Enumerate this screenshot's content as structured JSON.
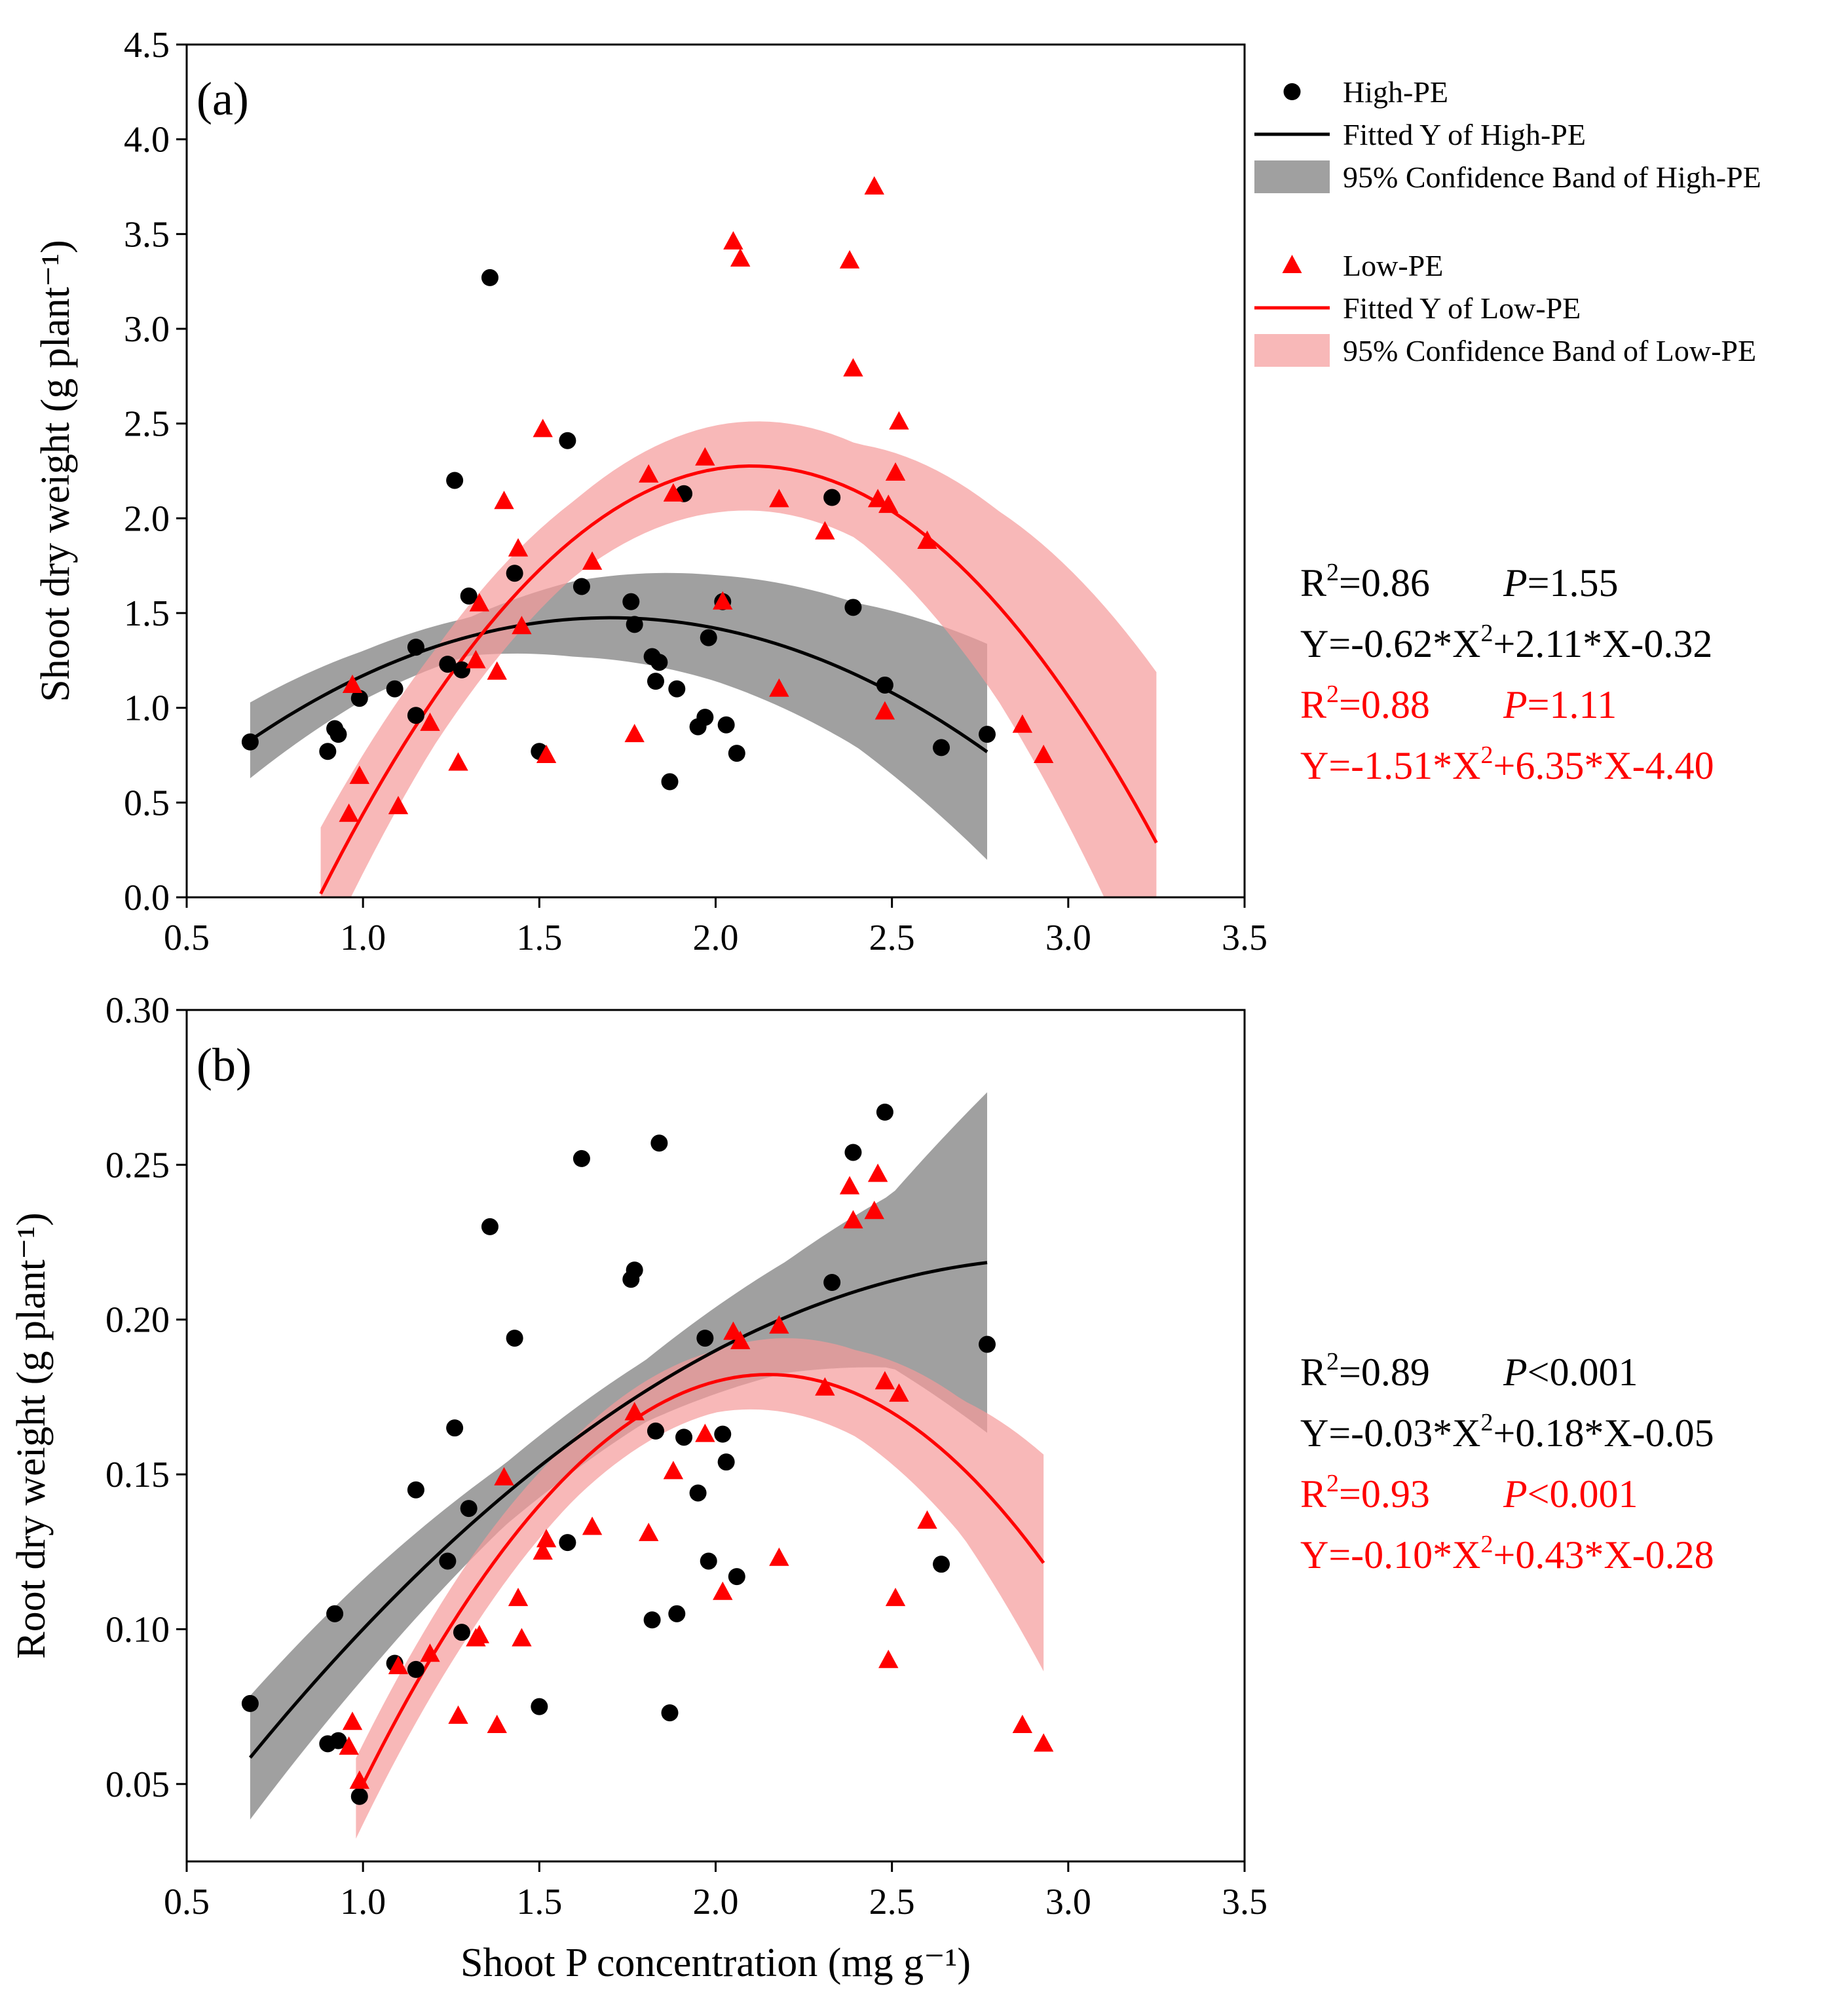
{
  "chart_data": [
    {
      "type": "scatter",
      "panel_label": "(a)",
      "xlabel": "Shoot P concentration (mg g⁻¹)",
      "ylabel": "Shoot dry weight (g plant⁻¹)",
      "xlim": [
        0.5,
        3.5
      ],
      "ylim": [
        0.0,
        4.5
      ],
      "xticks": [
        0.5,
        1.0,
        1.5,
        2.0,
        2.5,
        3.0,
        3.5
      ],
      "yticks": [
        0.0,
        0.5,
        1.0,
        1.5,
        2.0,
        2.5,
        3.0,
        3.5,
        4.0,
        4.5
      ],
      "series": [
        {
          "name": "High-PE",
          "color": "#000000",
          "marker": "circle",
          "points": [
            [
              0.68,
              0.82
            ],
            [
              0.9,
              0.77
            ],
            [
              0.92,
              0.89
            ],
            [
              0.93,
              0.86
            ],
            [
              0.99,
              1.05
            ],
            [
              1.09,
              1.1
            ],
            [
              1.15,
              1.32
            ],
            [
              1.15,
              0.96
            ],
            [
              1.24,
              1.23
            ],
            [
              1.26,
              2.2
            ],
            [
              1.28,
              1.2
            ],
            [
              1.3,
              1.59
            ],
            [
              1.36,
              3.27
            ],
            [
              1.43,
              1.71
            ],
            [
              1.5,
              0.77
            ],
            [
              1.58,
              2.41
            ],
            [
              1.62,
              1.64
            ],
            [
              1.76,
              1.56
            ],
            [
              1.77,
              1.44
            ],
            [
              1.82,
              1.27
            ],
            [
              1.83,
              1.14
            ],
            [
              1.84,
              1.24
            ],
            [
              1.87,
              0.61
            ],
            [
              1.89,
              1.1
            ],
            [
              1.91,
              2.13
            ],
            [
              1.95,
              0.9
            ],
            [
              1.97,
              0.95
            ],
            [
              1.98,
              1.37
            ],
            [
              2.02,
              1.56
            ],
            [
              2.03,
              0.91
            ],
            [
              2.06,
              0.76
            ],
            [
              2.33,
              2.11
            ],
            [
              2.39,
              1.53
            ],
            [
              2.48,
              1.12
            ],
            [
              2.64,
              0.79
            ],
            [
              2.77,
              0.86
            ]
          ],
          "fit": {
            "a": -0.62,
            "b": 2.11,
            "c": -0.32,
            "x_range": [
              0.68,
              2.77
            ]
          },
          "band_halfwidth": [
            [
              0.68,
              0.2
            ],
            [
              1.0,
              0.13
            ],
            [
              1.3,
              0.1
            ],
            [
              1.6,
              0.2
            ],
            [
              2.0,
              0.28
            ],
            [
              2.4,
              0.38
            ],
            [
              2.77,
              0.57
            ]
          ]
        },
        {
          "name": "Low-PE",
          "color": "#ff0000",
          "marker": "triangle",
          "points": [
            [
              0.96,
              0.44
            ],
            [
              0.97,
              1.12
            ],
            [
              0.99,
              0.64
            ],
            [
              1.1,
              0.48
            ],
            [
              1.19,
              0.92
            ],
            [
              1.27,
              0.71
            ],
            [
              1.32,
              1.25
            ],
            [
              1.33,
              1.55
            ],
            [
              1.38,
              1.19
            ],
            [
              1.4,
              2.09
            ],
            [
              1.44,
              1.84
            ],
            [
              1.45,
              1.43
            ],
            [
              1.51,
              2.47
            ],
            [
              1.52,
              0.75
            ],
            [
              1.65,
              1.77
            ],
            [
              1.77,
              0.86
            ],
            [
              1.81,
              2.23
            ],
            [
              1.88,
              2.13
            ],
            [
              1.97,
              2.32
            ],
            [
              2.02,
              1.56
            ],
            [
              2.05,
              3.46
            ],
            [
              2.07,
              3.37
            ],
            [
              2.18,
              1.1
            ],
            [
              2.18,
              2.1
            ],
            [
              2.31,
              1.93
            ],
            [
              2.38,
              3.36
            ],
            [
              2.39,
              2.79
            ],
            [
              2.45,
              3.75
            ],
            [
              2.46,
              2.1
            ],
            [
              2.48,
              0.98
            ],
            [
              2.49,
              2.07
            ],
            [
              2.51,
              2.24
            ],
            [
              2.52,
              2.51
            ],
            [
              2.6,
              1.88
            ],
            [
              2.87,
              0.91
            ],
            [
              2.93,
              0.75
            ]
          ],
          "fit": {
            "a": -1.51,
            "b": 6.35,
            "c": -4.4,
            "x_range": [
              0.88,
              3.25
            ]
          },
          "band_halfwidth": [
            [
              0.88,
              0.35
            ],
            [
              1.2,
              0.25
            ],
            [
              1.6,
              0.2
            ],
            [
              2.0,
              0.23
            ],
            [
              2.4,
              0.25
            ],
            [
              2.8,
              0.5
            ],
            [
              3.25,
              0.9
            ]
          ]
        }
      ],
      "stats": [
        {
          "r2": "0.86",
          "p": "1.55",
          "equation": {
            "pre": "Y=-0.62*X",
            "post": "+2.11*X-0.32"
          },
          "color": "#000000"
        },
        {
          "r2": "0.88",
          "p": "1.11",
          "equation": {
            "pre": "Y=-1.51*X",
            "post": "+6.35*X-4.40"
          },
          "color": "#ff0000"
        }
      ]
    },
    {
      "type": "scatter",
      "panel_label": "(b)",
      "xlabel": "Shoot P concentration (mg g⁻¹)",
      "ylabel": "Root dry weight (g plant⁻¹)",
      "xlim": [
        0.5,
        3.5
      ],
      "ylim": [
        0.025,
        0.3
      ],
      "xticks": [
        0.5,
        1.0,
        1.5,
        2.0,
        2.5,
        3.0,
        3.5
      ],
      "yticks": [
        0.05,
        0.1,
        0.15,
        0.2,
        0.25,
        0.3
      ],
      "series": [
        {
          "name": "High-PE",
          "color": "#000000",
          "marker": "circle",
          "points": [
            [
              0.68,
              0.076
            ],
            [
              0.9,
              0.063
            ],
            [
              0.92,
              0.105
            ],
            [
              0.93,
              0.064
            ],
            [
              0.99,
              0.046
            ],
            [
              1.09,
              0.089
            ],
            [
              1.15,
              0.087
            ],
            [
              1.15,
              0.145
            ],
            [
              1.24,
              0.122
            ],
            [
              1.26,
              0.165
            ],
            [
              1.28,
              0.099
            ],
            [
              1.3,
              0.139
            ],
            [
              1.36,
              0.23
            ],
            [
              1.43,
              0.194
            ],
            [
              1.5,
              0.075
            ],
            [
              1.58,
              0.128
            ],
            [
              1.62,
              0.252
            ],
            [
              1.76,
              0.213
            ],
            [
              1.77,
              0.216
            ],
            [
              1.82,
              0.103
            ],
            [
              1.83,
              0.164
            ],
            [
              1.84,
              0.257
            ],
            [
              1.87,
              0.073
            ],
            [
              1.89,
              0.105
            ],
            [
              1.91,
              0.162
            ],
            [
              1.95,
              0.144
            ],
            [
              1.97,
              0.194
            ],
            [
              1.98,
              0.122
            ],
            [
              2.02,
              0.163
            ],
            [
              2.03,
              0.154
            ],
            [
              2.06,
              0.117
            ],
            [
              2.33,
              0.212
            ],
            [
              2.39,
              0.254
            ],
            [
              2.48,
              0.267
            ],
            [
              2.64,
              0.121
            ],
            [
              2.77,
              0.192
            ]
          ],
          "fit": {
            "a": -0.03,
            "b": 0.18,
            "c": -0.05,
            "x_range": [
              0.68,
              2.77
            ]
          },
          "band_halfwidth": [
            [
              0.68,
              0.02
            ],
            [
              1.0,
              0.016
            ],
            [
              1.4,
              0.01
            ],
            [
              1.8,
              0.01
            ],
            [
              2.2,
              0.018
            ],
            [
              2.5,
              0.028
            ],
            [
              2.77,
              0.055
            ]
          ]
        },
        {
          "name": "Low-PE",
          "color": "#ff0000",
          "marker": "triangle",
          "points": [
            [
              0.96,
              0.062
            ],
            [
              0.97,
              0.07
            ],
            [
              0.99,
              0.051
            ],
            [
              1.1,
              0.088
            ],
            [
              1.19,
              0.092
            ],
            [
              1.27,
              0.072
            ],
            [
              1.32,
              0.097
            ],
            [
              1.33,
              0.098
            ],
            [
              1.38,
              0.069
            ],
            [
              1.4,
              0.149
            ],
            [
              1.44,
              0.11
            ],
            [
              1.45,
              0.097
            ],
            [
              1.51,
              0.125
            ],
            [
              1.52,
              0.129
            ],
            [
              1.65,
              0.133
            ],
            [
              1.77,
              0.17
            ],
            [
              1.81,
              0.131
            ],
            [
              1.88,
              0.151
            ],
            [
              1.97,
              0.163
            ],
            [
              2.02,
              0.112
            ],
            [
              2.05,
              0.196
            ],
            [
              2.07,
              0.193
            ],
            [
              2.18,
              0.198
            ],
            [
              2.18,
              0.123
            ],
            [
              2.31,
              0.178
            ],
            [
              2.38,
              0.243
            ],
            [
              2.39,
              0.232
            ],
            [
              2.45,
              0.235
            ],
            [
              2.46,
              0.247
            ],
            [
              2.48,
              0.18
            ],
            [
              2.49,
              0.09
            ],
            [
              2.51,
              0.11
            ],
            [
              2.52,
              0.176
            ],
            [
              2.6,
              0.135
            ],
            [
              2.87,
              0.069
            ],
            [
              2.93,
              0.063
            ]
          ],
          "fit": {
            "a": -0.1,
            "b": 0.43,
            "c": -0.28,
            "x_range": [
              0.98,
              2.93
            ]
          },
          "band_halfwidth": [
            [
              0.98,
              0.013
            ],
            [
              1.3,
              0.012
            ],
            [
              1.6,
              0.01
            ],
            [
              2.0,
              0.01
            ],
            [
              2.4,
              0.014
            ],
            [
              2.7,
              0.022
            ],
            [
              2.93,
              0.035
            ]
          ]
        }
      ],
      "stats": [
        {
          "r2": "0.89",
          "p": "<0.001",
          "equation": {
            "pre": "Y=-0.03*X",
            "post": "+0.18*X-0.05"
          },
          "color": "#000000"
        },
        {
          "r2": "0.93",
          "p": "<0.001",
          "equation": {
            "pre": "Y=-0.10*X",
            "post": "+0.43*X-0.28"
          },
          "color": "#ff0000"
        }
      ]
    }
  ],
  "legend": {
    "high_point": "High-PE",
    "high_fit": "Fitted Y of High-PE",
    "high_band": "95% Confidence Band of High-PE",
    "low_point": "Low-PE",
    "low_fit": "Fitted Y of Low-PE",
    "low_band": "95% Confidence Band of Low-PE"
  },
  "labels": {
    "r2_prefix": "R",
    "superscript_two": "2",
    "r2_eq": "=",
    "p_symbol": "P",
    "p_eq": "=",
    "p_lt": ""
  },
  "colors": {
    "high": "#000000",
    "low": "#ff0000",
    "high_band": "#808080",
    "low_band": "#f59a9a"
  }
}
